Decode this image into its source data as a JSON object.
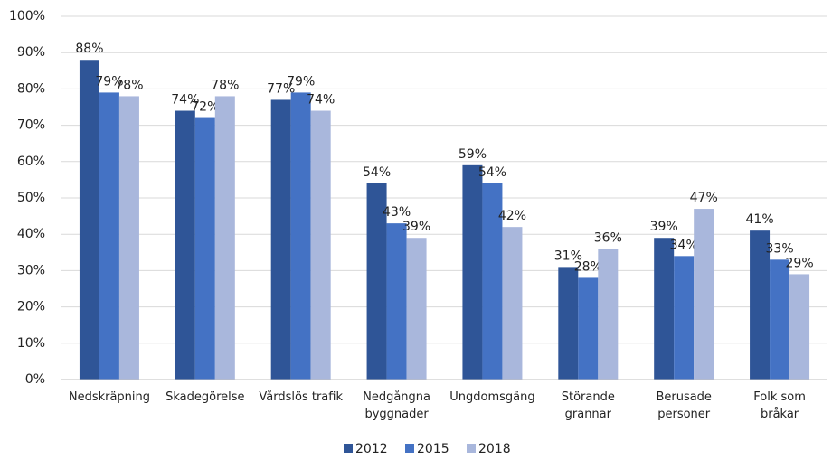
{
  "chart_data": {
    "type": "bar",
    "categories": [
      "Nedskräpning",
      "Skadegörelse",
      "Vårdslös trafik",
      "Nedgångna\nbyggnader",
      "Ungdomsgäng",
      "Störande\ngrannar",
      "Berusade\npersoner",
      "Folk som\nbråkar"
    ],
    "series": [
      {
        "name": "2012",
        "color": "#2f5597",
        "values": [
          88,
          74,
          77,
          54,
          59,
          31,
          39,
          41
        ],
        "value_labels": [
          "88%",
          "74%",
          "77%",
          "54%",
          "59%",
          "31%",
          "39%",
          "41%"
        ]
      },
      {
        "name": "2015",
        "color": "#4472c4",
        "values": [
          79,
          72,
          79,
          43,
          54,
          28,
          34,
          33
        ],
        "value_labels": [
          "79%",
          "72%",
          "79%",
          "43%",
          "54%",
          "28%",
          "34%",
          "33%"
        ]
      },
      {
        "name": "2018",
        "color": "#a9b7dc",
        "values": [
          78,
          78,
          74,
          39,
          42,
          36,
          47,
          29
        ],
        "value_labels": [
          "78%",
          "78%",
          "74%",
          "39%",
          "42%",
          "36%",
          "47%",
          "29%"
        ]
      }
    ],
    "ylim": [
      0,
      100
    ],
    "yticks": [
      {
        "value": 0,
        "label": "0%"
      },
      {
        "value": 10,
        "label": "10%"
      },
      {
        "value": 20,
        "label": "20%"
      },
      {
        "value": 30,
        "label": "30%"
      },
      {
        "value": 40,
        "label": "40%"
      },
      {
        "value": 50,
        "label": "50%"
      },
      {
        "value": 60,
        "label": "60%"
      },
      {
        "value": 70,
        "label": "70%"
      },
      {
        "value": 80,
        "label": "80%"
      },
      {
        "value": 90,
        "label": "90%"
      },
      {
        "value": 100,
        "label": "100%"
      }
    ],
    "grid": true,
    "legend": "bottom"
  }
}
